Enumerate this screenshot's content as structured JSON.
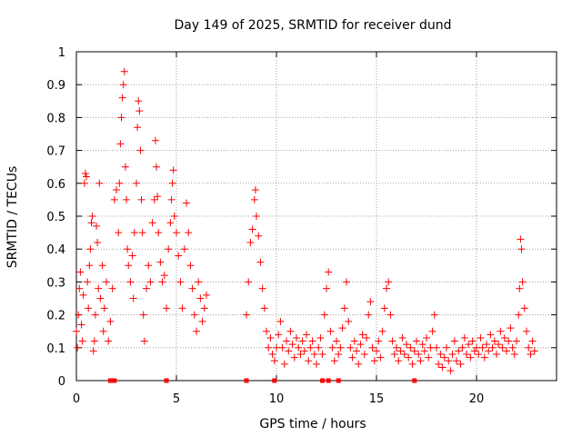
{
  "chart_data": {
    "type": "scatter",
    "title": "Day 149 of 2025, SRMTID for receiver dund",
    "xlabel": "GPS time / hours",
    "ylabel": "SRMTID / TECUs",
    "xlim": [
      0,
      24
    ],
    "ylim": [
      0,
      1
    ],
    "xticks": [
      0,
      5,
      10,
      15,
      20
    ],
    "xtick_labels": [
      "0",
      "5",
      "10",
      "15",
      "20"
    ],
    "yticks": [
      0,
      0.1,
      0.2,
      0.3,
      0.4,
      0.5,
      0.6,
      0.7,
      0.8,
      0.9,
      1
    ],
    "ytick_labels": [
      "0",
      "0.1",
      "0.2",
      "0.3",
      "0.4",
      "0.5",
      "0.6",
      "0.7",
      "0.8",
      "0.9",
      "1"
    ],
    "grid": true,
    "marker": "+",
    "color": "#ff0000",
    "series": [
      {
        "name": "SRMTID",
        "points": [
          [
            0.0,
            0.15
          ],
          [
            0.05,
            0.1
          ],
          [
            0.1,
            0.2
          ],
          [
            0.15,
            0.28
          ],
          [
            0.2,
            0.33
          ],
          [
            0.25,
            0.17
          ],
          [
            0.3,
            0.12
          ],
          [
            0.35,
            0.26
          ],
          [
            0.4,
            0.6
          ],
          [
            0.45,
            0.63
          ],
          [
            0.5,
            0.62
          ],
          [
            0.55,
            0.3
          ],
          [
            0.6,
            0.22
          ],
          [
            0.65,
            0.35
          ],
          [
            0.7,
            0.4
          ],
          [
            0.75,
            0.48
          ],
          [
            0.8,
            0.5
          ],
          [
            0.85,
            0.09
          ],
          [
            0.9,
            0.12
          ],
          [
            0.95,
            0.2
          ],
          [
            1.0,
            0.47
          ],
          [
            1.05,
            0.42
          ],
          [
            1.1,
            0.28
          ],
          [
            1.15,
            0.6
          ],
          [
            1.2,
            0.25
          ],
          [
            1.3,
            0.35
          ],
          [
            1.35,
            0.15
          ],
          [
            1.4,
            0.22
          ],
          [
            1.5,
            0.3
          ],
          [
            1.6,
            0.12
          ],
          [
            1.7,
            0.18
          ],
          [
            1.8,
            0.28
          ],
          [
            1.9,
            0.55
          ],
          [
            2.0,
            0.58
          ],
          [
            2.1,
            0.45
          ],
          [
            2.15,
            0.6
          ],
          [
            2.2,
            0.72
          ],
          [
            2.25,
            0.8
          ],
          [
            2.3,
            0.86
          ],
          [
            2.35,
            0.9
          ],
          [
            2.4,
            0.94
          ],
          [
            2.45,
            0.65
          ],
          [
            2.5,
            0.55
          ],
          [
            2.55,
            0.4
          ],
          [
            2.6,
            0.35
          ],
          [
            2.7,
            0.3
          ],
          [
            2.8,
            0.38
          ],
          [
            2.85,
            0.25
          ],
          [
            2.9,
            0.45
          ],
          [
            3.0,
            0.6
          ],
          [
            3.05,
            0.77
          ],
          [
            3.1,
            0.85
          ],
          [
            3.15,
            0.82
          ],
          [
            3.2,
            0.7
          ],
          [
            3.25,
            0.55
          ],
          [
            3.3,
            0.45
          ],
          [
            3.35,
            0.2
          ],
          [
            3.4,
            0.12
          ],
          [
            3.5,
            0.28
          ],
          [
            3.6,
            0.35
          ],
          [
            3.7,
            0.3
          ],
          [
            3.8,
            0.48
          ],
          [
            3.9,
            0.55
          ],
          [
            3.95,
            0.73
          ],
          [
            4.0,
            0.65
          ],
          [
            4.05,
            0.56
          ],
          [
            4.1,
            0.45
          ],
          [
            4.2,
            0.36
          ],
          [
            4.3,
            0.3
          ],
          [
            4.4,
            0.32
          ],
          [
            4.5,
            0.22
          ],
          [
            4.6,
            0.4
          ],
          [
            4.7,
            0.48
          ],
          [
            4.75,
            0.55
          ],
          [
            4.8,
            0.6
          ],
          [
            4.85,
            0.64
          ],
          [
            4.9,
            0.5
          ],
          [
            5.0,
            0.45
          ],
          [
            5.1,
            0.38
          ],
          [
            5.2,
            0.3
          ],
          [
            5.3,
            0.22
          ],
          [
            5.4,
            0.4
          ],
          [
            5.5,
            0.54
          ],
          [
            5.6,
            0.45
          ],
          [
            5.7,
            0.35
          ],
          [
            5.8,
            0.28
          ],
          [
            5.9,
            0.2
          ],
          [
            6.0,
            0.15
          ],
          [
            6.1,
            0.3
          ],
          [
            6.2,
            0.25
          ],
          [
            6.3,
            0.18
          ],
          [
            6.4,
            0.22
          ],
          [
            6.5,
            0.26
          ],
          [
            8.5,
            0.2
          ],
          [
            8.6,
            0.3
          ],
          [
            8.7,
            0.42
          ],
          [
            8.8,
            0.46
          ],
          [
            8.9,
            0.55
          ],
          [
            8.95,
            0.58
          ],
          [
            9.0,
            0.5
          ],
          [
            9.1,
            0.44
          ],
          [
            9.2,
            0.36
          ],
          [
            9.3,
            0.28
          ],
          [
            9.4,
            0.22
          ],
          [
            9.5,
            0.15
          ],
          [
            9.6,
            0.1
          ],
          [
            9.7,
            0.13
          ],
          [
            9.8,
            0.08
          ],
          [
            9.9,
            0.06
          ],
          [
            10.0,
            0.1
          ],
          [
            10.1,
            0.14
          ],
          [
            10.2,
            0.18
          ],
          [
            10.3,
            0.1
          ],
          [
            10.4,
            0.05
          ],
          [
            10.5,
            0.12
          ],
          [
            10.6,
            0.09
          ],
          [
            10.7,
            0.15
          ],
          [
            10.8,
            0.11
          ],
          [
            10.9,
            0.07
          ],
          [
            11.0,
            0.13
          ],
          [
            11.1,
            0.1
          ],
          [
            11.2,
            0.08
          ],
          [
            11.3,
            0.12
          ],
          [
            11.4,
            0.09
          ],
          [
            11.5,
            0.14
          ],
          [
            11.6,
            0.06
          ],
          [
            11.7,
            0.1
          ],
          [
            11.8,
            0.12
          ],
          [
            11.9,
            0.08
          ],
          [
            12.0,
            0.05
          ],
          [
            12.1,
            0.1
          ],
          [
            12.2,
            0.13
          ],
          [
            12.3,
            0.08
          ],
          [
            12.4,
            0.2
          ],
          [
            12.5,
            0.28
          ],
          [
            12.6,
            0.33
          ],
          [
            12.7,
            0.15
          ],
          [
            12.8,
            0.1
          ],
          [
            12.9,
            0.06
          ],
          [
            13.0,
            0.12
          ],
          [
            13.1,
            0.08
          ],
          [
            13.2,
            0.1
          ],
          [
            13.3,
            0.16
          ],
          [
            13.4,
            0.22
          ],
          [
            13.5,
            0.3
          ],
          [
            13.6,
            0.18
          ],
          [
            13.7,
            0.1
          ],
          [
            13.8,
            0.07
          ],
          [
            13.9,
            0.12
          ],
          [
            14.0,
            0.09
          ],
          [
            14.1,
            0.05
          ],
          [
            14.2,
            0.11
          ],
          [
            14.3,
            0.14
          ],
          [
            14.4,
            0.08
          ],
          [
            14.5,
            0.13
          ],
          [
            14.6,
            0.2
          ],
          [
            14.7,
            0.24
          ],
          [
            14.8,
            0.1
          ],
          [
            14.9,
            0.06
          ],
          [
            15.0,
            0.09
          ],
          [
            15.1,
            0.12
          ],
          [
            15.2,
            0.07
          ],
          [
            15.3,
            0.15
          ],
          [
            15.4,
            0.22
          ],
          [
            15.5,
            0.28
          ],
          [
            15.6,
            0.3
          ],
          [
            15.7,
            0.2
          ],
          [
            15.8,
            0.12
          ],
          [
            15.9,
            0.08
          ],
          [
            16.0,
            0.1
          ],
          [
            16.1,
            0.06
          ],
          [
            16.2,
            0.09
          ],
          [
            16.3,
            0.13
          ],
          [
            16.4,
            0.08
          ],
          [
            16.5,
            0.11
          ],
          [
            16.6,
            0.07
          ],
          [
            16.7,
            0.1
          ],
          [
            16.8,
            0.05
          ],
          [
            16.9,
            0.09
          ],
          [
            17.0,
            0.12
          ],
          [
            17.1,
            0.08
          ],
          [
            17.2,
            0.06
          ],
          [
            17.3,
            0.11
          ],
          [
            17.4,
            0.09
          ],
          [
            17.5,
            0.13
          ],
          [
            17.6,
            0.07
          ],
          [
            17.7,
            0.1
          ],
          [
            17.8,
            0.15
          ],
          [
            17.9,
            0.2
          ],
          [
            18.0,
            0.1
          ],
          [
            18.1,
            0.05
          ],
          [
            18.2,
            0.08
          ],
          [
            18.3,
            0.04
          ],
          [
            18.4,
            0.07
          ],
          [
            18.5,
            0.1
          ],
          [
            18.6,
            0.06
          ],
          [
            18.7,
            0.03
          ],
          [
            18.8,
            0.08
          ],
          [
            18.9,
            0.12
          ],
          [
            19.0,
            0.06
          ],
          [
            19.1,
            0.09
          ],
          [
            19.2,
            0.05
          ],
          [
            19.3,
            0.1
          ],
          [
            19.4,
            0.13
          ],
          [
            19.5,
            0.08
          ],
          [
            19.6,
            0.11
          ],
          [
            19.7,
            0.07
          ],
          [
            19.8,
            0.12
          ],
          [
            19.9,
            0.09
          ],
          [
            20.0,
            0.1
          ],
          [
            20.1,
            0.08
          ],
          [
            20.2,
            0.13
          ],
          [
            20.3,
            0.1
          ],
          [
            20.4,
            0.07
          ],
          [
            20.5,
            0.11
          ],
          [
            20.6,
            0.09
          ],
          [
            20.7,
            0.14
          ],
          [
            20.8,
            0.1
          ],
          [
            20.9,
            0.12
          ],
          [
            21.0,
            0.08
          ],
          [
            21.1,
            0.11
          ],
          [
            21.2,
            0.15
          ],
          [
            21.3,
            0.1
          ],
          [
            21.4,
            0.13
          ],
          [
            21.5,
            0.09
          ],
          [
            21.6,
            0.12
          ],
          [
            21.7,
            0.16
          ],
          [
            21.8,
            0.1
          ],
          [
            21.9,
            0.08
          ],
          [
            22.0,
            0.12
          ],
          [
            22.1,
            0.2
          ],
          [
            22.15,
            0.28
          ],
          [
            22.2,
            0.43
          ],
          [
            22.25,
            0.4
          ],
          [
            22.3,
            0.3
          ],
          [
            22.4,
            0.22
          ],
          [
            22.5,
            0.15
          ],
          [
            22.6,
            0.1
          ],
          [
            22.7,
            0.08
          ],
          [
            22.8,
            0.12
          ],
          [
            22.9,
            0.09
          ]
        ]
      }
    ],
    "zero_markers_x": [
      1.7,
      1.9,
      4.5,
      8.5,
      9.9,
      12.3,
      12.6,
      13.1,
      16.9
    ]
  }
}
